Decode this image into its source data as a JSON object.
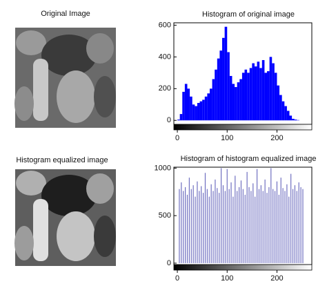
{
  "images": [
    {
      "title": "Original Image"
    },
    {
      "title": "Histogram equalized image"
    }
  ],
  "chart_data": [
    {
      "type": "histogram",
      "title": "Histogram of original image",
      "color": "#0000ff",
      "bins": [
        0,
        5,
        10,
        15,
        20,
        25,
        30,
        35,
        40,
        45,
        50,
        55,
        60,
        65,
        70,
        75,
        80,
        85,
        90,
        95,
        100,
        105,
        110,
        115,
        120,
        125,
        130,
        135,
        140,
        145,
        150,
        155,
        160,
        165,
        170,
        175,
        180,
        185,
        190,
        195,
        200,
        205,
        210,
        215,
        220,
        225,
        230,
        235,
        240,
        245,
        250,
        255,
        260
      ],
      "values": [
        5,
        40,
        180,
        230,
        200,
        150,
        100,
        90,
        110,
        120,
        130,
        150,
        170,
        200,
        260,
        320,
        390,
        440,
        520,
        590,
        430,
        280,
        230,
        210,
        240,
        260,
        300,
        320,
        300,
        330,
        360,
        340,
        370,
        330,
        380,
        300,
        310,
        400,
        360,
        300,
        220,
        160,
        120,
        90,
        60,
        30,
        10,
        5,
        2,
        0,
        0,
        0
      ],
      "xlim": [
        -7,
        270
      ],
      "xticks": [
        0,
        100,
        200
      ],
      "ylim": [
        -25,
        615
      ],
      "yticks": [
        0,
        200,
        400,
        600
      ]
    },
    {
      "type": "stem",
      "title": "Histogram of histogram equalized image",
      "color": "#6f6fc0",
      "x": [
        4,
        8,
        12,
        16,
        20,
        24,
        28,
        32,
        36,
        40,
        44,
        48,
        52,
        56,
        60,
        64,
        68,
        72,
        76,
        80,
        84,
        88,
        92,
        96,
        100,
        104,
        108,
        112,
        116,
        120,
        124,
        128,
        132,
        136,
        140,
        144,
        148,
        152,
        156,
        160,
        164,
        168,
        172,
        176,
        180,
        184,
        188,
        192,
        196,
        200,
        204,
        208,
        212,
        216,
        220,
        224,
        228,
        232,
        236,
        240,
        244,
        248,
        252
      ],
      "values": [
        780,
        850,
        760,
        800,
        720,
        900,
        780,
        820,
        700,
        860,
        760,
        810,
        740,
        950,
        780,
        700,
        830,
        760,
        880,
        790,
        740,
        1000,
        820,
        760,
        990,
        780,
        850,
        700,
        920,
        760,
        800,
        870,
        780,
        720,
        960,
        800,
        760,
        840,
        700,
        990,
        780,
        820,
        760,
        880,
        740,
        800,
        1000,
        780,
        760,
        860,
        720,
        900,
        790,
        760,
        830,
        700,
        940,
        780,
        820,
        760,
        850,
        800,
        780
      ],
      "xlim": [
        -7,
        270
      ],
      "xticks": [
        0,
        100,
        200
      ],
      "ylim": [
        -15,
        1010
      ],
      "yticks": [
        0,
        500,
        1000
      ]
    }
  ]
}
